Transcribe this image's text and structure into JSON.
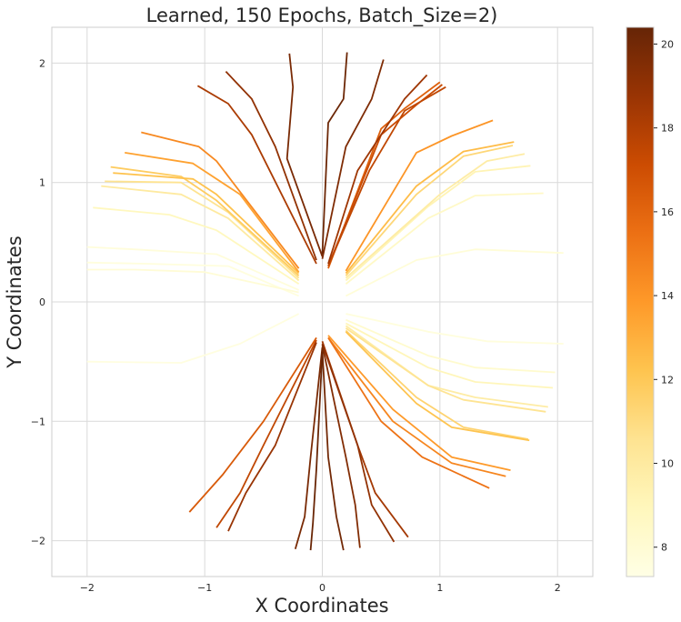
{
  "chart_data": {
    "type": "line",
    "title": "Learned, 150 Epochs, Batch_Size=2)",
    "xlabel": "X Coordinates",
    "ylabel": "Y Coordinates",
    "xlim": [
      -2.3,
      2.3
    ],
    "ylim": [
      -2.3,
      2.3
    ],
    "xticks": [
      -2,
      -1,
      0,
      1,
      2
    ],
    "yticks": [
      -2,
      -1,
      0,
      1,
      2
    ],
    "grid": true,
    "colormap": "YlOrBr",
    "colorbar": {
      "min": 7.3,
      "max": 20.4,
      "ticks": [
        8,
        10,
        12,
        14,
        16,
        18,
        20
      ]
    },
    "series": [
      {
        "color_value": 7.8,
        "points": [
          [
            0.2,
            0.05
          ],
          [
            0.8,
            0.35
          ],
          [
            1.3,
            0.44
          ],
          [
            2.05,
            0.41
          ]
        ]
      },
      {
        "color_value": 7.6,
        "points": [
          [
            -0.2,
            0.05
          ],
          [
            -0.8,
            0.3
          ],
          [
            -1.5,
            0.32
          ],
          [
            -2.0,
            0.33
          ]
        ]
      },
      {
        "color_value": 7.7,
        "points": [
          [
            -0.2,
            0.1
          ],
          [
            -0.9,
            0.4
          ],
          [
            -1.6,
            0.44
          ],
          [
            -2.0,
            0.46
          ]
        ]
      },
      {
        "color_value": 7.9,
        "points": [
          [
            -0.2,
            0.08
          ],
          [
            -1.0,
            0.25
          ],
          [
            -1.6,
            0.27
          ],
          [
            -2.0,
            0.27
          ]
        ]
      },
      {
        "color_value": 8.5,
        "points": [
          [
            0.2,
            0.15
          ],
          [
            0.9,
            0.7
          ],
          [
            1.3,
            0.89
          ],
          [
            1.88,
            0.91
          ]
        ]
      },
      {
        "color_value": 8.8,
        "points": [
          [
            -0.2,
            0.15
          ],
          [
            -0.9,
            0.6
          ],
          [
            -1.3,
            0.73
          ],
          [
            -1.95,
            0.79
          ]
        ]
      },
      {
        "color_value": 9.2,
        "points": [
          [
            0.2,
            0.18
          ],
          [
            0.9,
            0.8
          ],
          [
            1.3,
            1.09
          ],
          [
            1.77,
            1.14
          ]
        ]
      },
      {
        "color_value": 9.8,
        "points": [
          [
            0.2,
            0.2
          ],
          [
            1.0,
            0.9
          ],
          [
            1.4,
            1.18
          ],
          [
            1.72,
            1.24
          ]
        ]
      },
      {
        "color_value": 10.0,
        "points": [
          [
            -0.2,
            0.18
          ],
          [
            -0.8,
            0.7
          ],
          [
            -1.2,
            0.9
          ],
          [
            -1.88,
            0.97
          ]
        ]
      },
      {
        "color_value": 10.6,
        "points": [
          [
            -0.2,
            0.2
          ],
          [
            -0.8,
            0.75
          ],
          [
            -1.2,
            1.0
          ],
          [
            -1.85,
            1.01
          ]
        ]
      },
      {
        "color_value": 11.2,
        "points": [
          [
            0.2,
            0.22
          ],
          [
            0.8,
            0.9
          ],
          [
            1.2,
            1.22
          ],
          [
            1.62,
            1.31
          ]
        ]
      },
      {
        "color_value": 11.8,
        "points": [
          [
            -0.2,
            0.22
          ],
          [
            -0.9,
            0.85
          ],
          [
            -1.2,
            1.05
          ],
          [
            -1.8,
            1.13
          ]
        ]
      },
      {
        "color_value": 12.3,
        "points": [
          [
            -0.2,
            0.24
          ],
          [
            -0.9,
            0.9
          ],
          [
            -1.1,
            1.03
          ],
          [
            -1.78,
            1.08
          ]
        ]
      },
      {
        "color_value": 12.5,
        "points": [
          [
            0.2,
            0.24
          ],
          [
            0.8,
            0.97
          ],
          [
            1.2,
            1.26
          ],
          [
            1.63,
            1.34
          ]
        ]
      },
      {
        "color_value": 13.5,
        "points": [
          [
            -0.2,
            0.25
          ],
          [
            -0.7,
            0.9
          ],
          [
            -1.1,
            1.16
          ],
          [
            -1.68,
            1.25
          ]
        ]
      },
      {
        "color_value": 14.0,
        "points": [
          [
            0.2,
            0.26
          ],
          [
            0.8,
            1.25
          ],
          [
            1.1,
            1.39
          ],
          [
            1.45,
            1.52
          ]
        ]
      },
      {
        "color_value": 14.5,
        "points": [
          [
            -0.2,
            0.28
          ],
          [
            -0.9,
            1.18
          ],
          [
            -1.05,
            1.3
          ],
          [
            -1.54,
            1.42
          ]
        ]
      },
      {
        "color_value": 16.2,
        "points": [
          [
            0.05,
            0.28
          ],
          [
            0.5,
            1.45
          ],
          [
            0.7,
            1.62
          ],
          [
            1.0,
            1.84
          ]
        ]
      },
      {
        "color_value": 17.2,
        "points": [
          [
            0.05,
            0.3
          ],
          [
            0.5,
            1.4
          ],
          [
            0.8,
            1.65
          ],
          [
            1.02,
            1.82
          ]
        ]
      },
      {
        "color_value": 17.5,
        "points": [
          [
            0.05,
            0.3
          ],
          [
            0.4,
            1.1
          ],
          [
            0.7,
            1.6
          ],
          [
            1.05,
            1.8
          ]
        ]
      },
      {
        "color_value": 18.2,
        "points": [
          [
            -0.05,
            0.32
          ],
          [
            -0.6,
            1.4
          ],
          [
            -0.8,
            1.66
          ],
          [
            -1.06,
            1.81
          ]
        ]
      },
      {
        "color_value": 18.6,
        "points": [
          [
            0.05,
            0.32
          ],
          [
            0.3,
            1.1
          ],
          [
            0.7,
            1.7
          ],
          [
            0.89,
            1.9
          ]
        ]
      },
      {
        "color_value": 19.0,
        "points": [
          [
            -0.05,
            0.35
          ],
          [
            -0.4,
            1.3
          ],
          [
            -0.6,
            1.7
          ],
          [
            -0.82,
            1.93
          ]
        ]
      },
      {
        "color_value": 19.6,
        "points": [
          [
            0.0,
            0.36
          ],
          [
            0.2,
            1.3
          ],
          [
            0.42,
            1.7
          ],
          [
            0.52,
            2.03
          ]
        ]
      },
      {
        "color_value": 19.8,
        "points": [
          [
            0.0,
            0.38
          ],
          [
            -0.3,
            1.2
          ],
          [
            -0.25,
            1.8
          ],
          [
            -0.28,
            2.08
          ]
        ]
      },
      {
        "color_value": 20.2,
        "points": [
          [
            0.0,
            0.4
          ],
          [
            0.05,
            1.5
          ],
          [
            0.18,
            1.7
          ],
          [
            0.21,
            2.09
          ]
        ]
      },
      {
        "color_value": 7.5,
        "points": [
          [
            -0.2,
            -0.1
          ],
          [
            -0.7,
            -0.35
          ],
          [
            -1.2,
            -0.51
          ],
          [
            -2.0,
            -0.5
          ]
        ]
      },
      {
        "color_value": 7.6,
        "points": [
          [
            0.2,
            -0.1
          ],
          [
            0.9,
            -0.25
          ],
          [
            1.4,
            -0.33
          ],
          [
            2.05,
            -0.35
          ]
        ]
      },
      {
        "color_value": 8.2,
        "points": [
          [
            0.2,
            -0.15
          ],
          [
            0.9,
            -0.45
          ],
          [
            1.3,
            -0.55
          ],
          [
            1.98,
            -0.59
          ]
        ]
      },
      {
        "color_value": 9.0,
        "points": [
          [
            0.2,
            -0.18
          ],
          [
            0.9,
            -0.55
          ],
          [
            1.3,
            -0.67
          ],
          [
            1.96,
            -0.72
          ]
        ]
      },
      {
        "color_value": 9.8,
        "points": [
          [
            0.2,
            -0.2
          ],
          [
            0.9,
            -0.7
          ],
          [
            1.3,
            -0.8
          ],
          [
            1.92,
            -0.88
          ]
        ]
      },
      {
        "color_value": 10.5,
        "points": [
          [
            0.2,
            -0.22
          ],
          [
            0.9,
            -0.7
          ],
          [
            1.2,
            -0.82
          ],
          [
            1.9,
            -0.92
          ]
        ]
      },
      {
        "color_value": 11.4,
        "points": [
          [
            0.2,
            -0.24
          ],
          [
            0.8,
            -0.8
          ],
          [
            1.2,
            -1.05
          ],
          [
            1.75,
            -1.15
          ]
        ]
      },
      {
        "color_value": 12.2,
        "points": [
          [
            0.2,
            -0.25
          ],
          [
            0.8,
            -0.85
          ],
          [
            1.1,
            -1.05
          ],
          [
            1.76,
            -1.16
          ]
        ]
      },
      {
        "color_value": 13.8,
        "points": [
          [
            0.05,
            -0.28
          ],
          [
            0.6,
            -0.9
          ],
          [
            1.1,
            -1.3
          ],
          [
            1.6,
            -1.41
          ]
        ]
      },
      {
        "color_value": 14.6,
        "points": [
          [
            0.05,
            -0.3
          ],
          [
            0.6,
            -1.0
          ],
          [
            1.1,
            -1.35
          ],
          [
            1.56,
            -1.46
          ]
        ]
      },
      {
        "color_value": 15.4,
        "points": [
          [
            0.05,
            -0.3
          ],
          [
            0.5,
            -1.0
          ],
          [
            0.85,
            -1.3
          ],
          [
            1.42,
            -1.56
          ]
        ]
      },
      {
        "color_value": 16.5,
        "points": [
          [
            -0.05,
            -0.3
          ],
          [
            -0.5,
            -1.0
          ],
          [
            -0.85,
            -1.45
          ],
          [
            -1.13,
            -1.76
          ]
        ]
      },
      {
        "color_value": 17.5,
        "points": [
          [
            -0.05,
            -0.32
          ],
          [
            -0.5,
            -1.2
          ],
          [
            -0.7,
            -1.6
          ],
          [
            -0.9,
            -1.89
          ]
        ]
      },
      {
        "color_value": 18.4,
        "points": [
          [
            0.0,
            -0.33
          ],
          [
            0.3,
            -1.2
          ],
          [
            0.45,
            -1.6
          ],
          [
            0.73,
            -1.97
          ]
        ]
      },
      {
        "color_value": 18.8,
        "points": [
          [
            -0.05,
            -0.34
          ],
          [
            -0.4,
            -1.2
          ],
          [
            -0.65,
            -1.6
          ],
          [
            -0.8,
            -1.92
          ]
        ]
      },
      {
        "color_value": 19.0,
        "points": [
          [
            0.0,
            -0.35
          ],
          [
            0.3,
            -1.2
          ],
          [
            0.42,
            -1.7
          ],
          [
            0.61,
            -2.01
          ]
        ]
      },
      {
        "color_value": 19.5,
        "points": [
          [
            0.0,
            -0.36
          ],
          [
            0.2,
            -1.3
          ],
          [
            0.28,
            -1.7
          ],
          [
            0.32,
            -2.06
          ]
        ]
      },
      {
        "color_value": 19.8,
        "points": [
          [
            0.0,
            -0.38
          ],
          [
            -0.1,
            -1.3
          ],
          [
            -0.15,
            -1.8
          ],
          [
            -0.23,
            -2.07
          ]
        ]
      },
      {
        "color_value": 20.0,
        "points": [
          [
            0.0,
            -0.4
          ],
          [
            0.05,
            -1.3
          ],
          [
            0.12,
            -1.8
          ],
          [
            0.18,
            -2.08
          ]
        ]
      },
      {
        "color_value": 20.3,
        "points": [
          [
            0.0,
            -0.42
          ],
          [
            -0.05,
            -1.4
          ],
          [
            -0.08,
            -1.85
          ],
          [
            -0.1,
            -2.08
          ]
        ]
      }
    ]
  }
}
